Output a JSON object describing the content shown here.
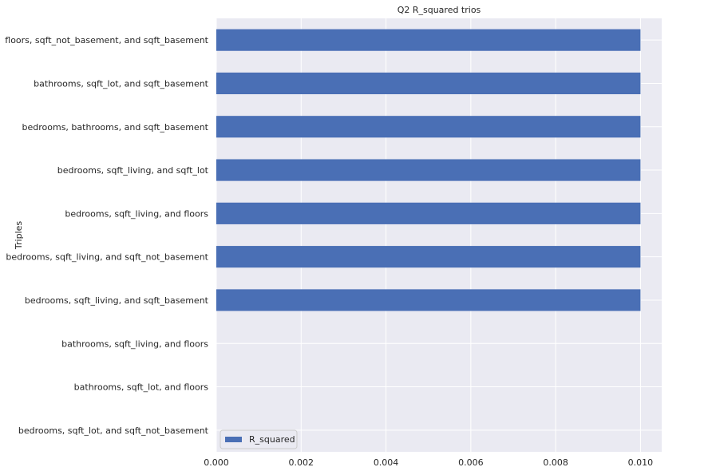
{
  "chart_data": {
    "type": "bar",
    "orientation": "horizontal",
    "title": "Q2 R_squared trios",
    "ylabel": "Triples",
    "xlabel": "",
    "categories": [
      "floors, sqft_not_basement, and sqft_basement",
      "bathrooms, sqft_lot, and sqft_basement",
      "bedrooms, bathrooms, and sqft_basement",
      "bedrooms, sqft_living, and sqft_lot",
      "bedrooms, sqft_living, and floors",
      "bedrooms, sqft_living, and sqft_not_basement",
      "bedrooms, sqft_living, and sqft_basement",
      "bathrooms, sqft_living, and floors",
      "bathrooms, sqft_lot, and floors",
      "bedrooms, sqft_lot, and sqft_not_basement"
    ],
    "series": [
      {
        "name": "R_squared",
        "values": [
          0.01,
          0.01,
          0.01,
          0.01,
          0.01,
          0.01,
          0.01,
          0.0,
          0.0,
          0.0
        ]
      }
    ],
    "xlim": [
      0.0,
      0.0105
    ],
    "xticks": [
      0.0,
      0.002,
      0.004,
      0.006,
      0.008,
      0.01
    ],
    "xtick_labels": [
      "0.000",
      "0.002",
      "0.004",
      "0.006",
      "0.008",
      "0.010"
    ],
    "grid": true,
    "legend_position": "lower-left",
    "colors": {
      "bar": "#4a6fb5",
      "plot_background": "#eaeaf2",
      "grid": "#ffffff",
      "text": "#262626"
    }
  }
}
